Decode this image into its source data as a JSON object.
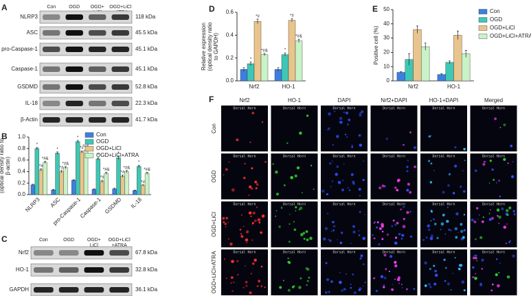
{
  "panels": [
    "A",
    "B",
    "C",
    "D",
    "E",
    "F"
  ],
  "blots": [
    {
      "columns": [
        "Con",
        "OGD",
        "OGD+\nLiCl",
        "OGD+LiCl\n+ATRA"
      ],
      "rows": [
        {
          "label": "NLRP3",
          "size": "118 kDa"
        },
        {
          "label": "ASC",
          "size": "45.5 kDa"
        },
        {
          "label": "pro-Caspase-1",
          "size": "45.1 kDa"
        },
        {
          "label": "Caspase-1",
          "size": "45.1 kDa"
        },
        {
          "label": "GSDMD",
          "size": "52.8 kDa"
        },
        {
          "label": "IL-18",
          "size": "22.3 kDa"
        },
        {
          "label": "β-Actin",
          "size": "41.7 kDa"
        }
      ]
    },
    {
      "columns": [
        "Con",
        "OGD",
        "OGD+\nLiCl",
        "OGD+LiCl\n+ATRA"
      ],
      "rows": [
        {
          "label": "Nrf2",
          "size": "67.8 kDa"
        },
        {
          "label": "HO-1",
          "size": "32.8 kDa"
        },
        {
          "label": "GAPDH",
          "size": "36.1 kDa"
        }
      ]
    }
  ],
  "chart_data": [
    {
      "type": "bar",
      "ylabel": [
        "Relative expression",
        "(optical density ratio to",
        "β-actin)"
      ],
      "categories": [
        "NLRP3",
        "ASC",
        "pro-Caspase-1",
        "Caspase-1",
        "GSDMD",
        "IL-18"
      ],
      "ylim": [
        0,
        1.0
      ],
      "yticks": [
        {
          "value": 0,
          "label": "0.0"
        },
        0.2,
        0.4,
        0.6,
        0.8,
        {
          "value": 1,
          "label": "1.0"
        }
      ],
      "legend": "upper right",
      "series": [
        {
          "name": "Con",
          "color": "#3d7fe0",
          "values": [
            0.17,
            0.08,
            0.25,
            0.09,
            0.1,
            0.07
          ],
          "errors": [
            0.01,
            0.01,
            0.01,
            0.01,
            0.01,
            0.01
          ]
        },
        {
          "name": "OGD",
          "color": "#3fc7b5",
          "values": [
            0.8,
            0.72,
            0.92,
            0.62,
            0.64,
            0.49
          ],
          "errors": [
            0.02,
            0.02,
            0.02,
            0.02,
            0.03,
            0.02
          ],
          "annotations": [
            "*",
            "*",
            "*",
            "*",
            "*",
            "*"
          ]
        },
        {
          "name": "OGD+LiCl",
          "color": "#e9c48c",
          "values": [
            0.43,
            0.4,
            0.74,
            0.23,
            0.32,
            0.16
          ],
          "errors": [
            0.02,
            0.02,
            0.02,
            0.02,
            0.02,
            0.01
          ],
          "annotations": [
            "*#",
            "*#",
            "*#",
            "*#",
            "*#",
            "*#"
          ]
        },
        {
          "name": "OGD+LiCl+ATRA",
          "color": "#c9f2c6",
          "values": [
            0.56,
            0.47,
            0.77,
            0.37,
            0.4,
            0.37
          ],
          "errors": [
            0.02,
            0.02,
            0.02,
            0.02,
            0.02,
            0.02
          ],
          "annotations": [
            "*#&",
            "*#&",
            "*#&",
            "*#&",
            "*#&",
            "*#&"
          ]
        }
      ]
    },
    {
      "type": "bar",
      "ylabel": [
        "Relative expression",
        "(optical density ratio",
        "to GAPDH)"
      ],
      "categories": [
        "Nrf2",
        "HO-1"
      ],
      "ylim": [
        0,
        0.6
      ],
      "yticks": [
        {
          "value": 0,
          "label": "0.0"
        },
        0.2,
        0.4,
        0.6
      ],
      "series": [
        {
          "name": "Con",
          "color": "#3d7fe0",
          "values": [
            0.1,
            0.1
          ],
          "errors": [
            0.015,
            0.015
          ]
        },
        {
          "name": "OGD",
          "color": "#3fc7b5",
          "values": [
            0.15,
            0.23
          ],
          "errors": [
            0.015,
            0.015
          ],
          "annotations": [
            "*",
            "*"
          ]
        },
        {
          "name": "OGD+LiCl",
          "color": "#e9c48c",
          "values": [
            0.52,
            0.53
          ],
          "errors": [
            0.02,
            0.015
          ],
          "annotations": [
            "*#",
            "*#"
          ]
        },
        {
          "name": "OGD+LiCl+ATRA",
          "color": "#c9f2c6",
          "values": [
            0.23,
            0.35
          ],
          "errors": [
            0.01,
            0.015
          ],
          "annotations": [
            "*#&",
            "*#&"
          ]
        }
      ]
    },
    {
      "type": "bar",
      "ylabel": [
        "Positive cell (%)"
      ],
      "categories": [
        "Nrf2",
        "HO-1"
      ],
      "ylim": [
        0,
        50
      ],
      "yticks": [
        0,
        10,
        20,
        30,
        40,
        50
      ],
      "legend": "outside right",
      "series": [
        {
          "name": "Con",
          "color": "#3d7fe0",
          "values": [
            6,
            4.5
          ],
          "errors": [
            0.5,
            0.5
          ]
        },
        {
          "name": "OGD",
          "color": "#3fc7b5",
          "values": [
            15,
            13
          ],
          "errors": [
            4,
            1
          ]
        },
        {
          "name": "OGD+LiCl",
          "color": "#e9c48c",
          "values": [
            36,
            32
          ],
          "errors": [
            2.5,
            3
          ]
        },
        {
          "name": "OGD+LiCl+ATRA",
          "color": "#c9f2c6",
          "values": [
            24,
            19
          ],
          "errors": [
            2.5,
            2.5
          ]
        }
      ]
    }
  ],
  "micrographs": {
    "columns": [
      "Nrf2",
      "HO-1",
      "DAPI",
      "Nrf2+DAPI",
      "HO-1+DAPI",
      "Merged"
    ],
    "rows": [
      "Con",
      "OGD",
      "OGD+LiCl",
      "OGD+LiCl+ATRA"
    ],
    "region": "Dorsal Horn"
  }
}
